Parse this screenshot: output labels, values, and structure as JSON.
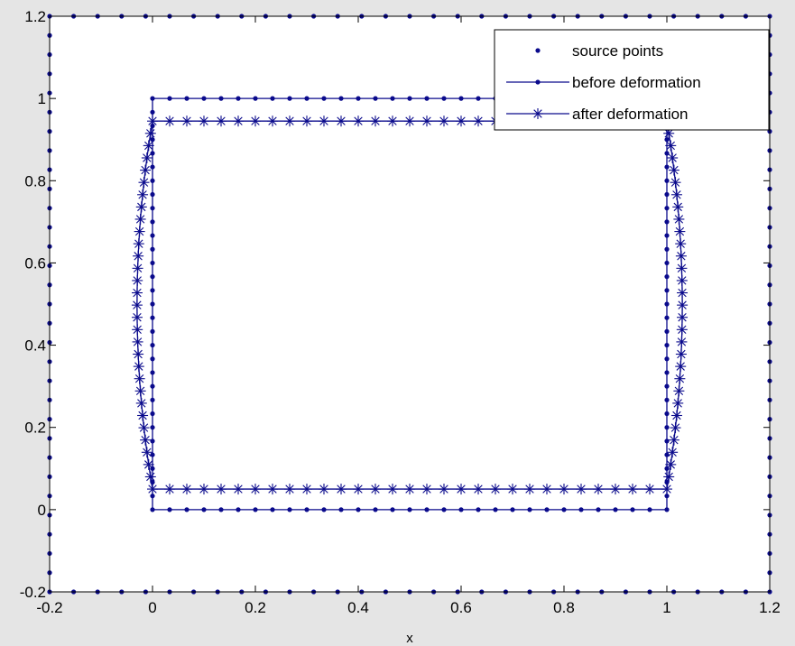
{
  "chart_data": {
    "type": "line",
    "title": "",
    "xlabel": "x",
    "ylabel": "",
    "xlim": [
      -0.2,
      1.2
    ],
    "ylim": [
      -0.2,
      1.2
    ],
    "xticks": [
      -0.2,
      0,
      0.2,
      0.4,
      0.6,
      0.8,
      1,
      1.2
    ],
    "yticks": [
      -0.2,
      0,
      0.2,
      0.4,
      0.6,
      0.8,
      1,
      1.2
    ],
    "xtick_labels": [
      "-0.2",
      "0",
      "0.2",
      "0.4",
      "0.6",
      "0.8",
      "1",
      "1.2"
    ],
    "ytick_labels": [
      "-0.2",
      "0",
      "0.2",
      "0.4",
      "0.6",
      "0.8",
      "1",
      "1.2"
    ],
    "grid": false,
    "legend_position": "top-right",
    "series": [
      {
        "name": "source points",
        "marker": "dot",
        "line": false,
        "shape": "square-boundary",
        "corners": [
          [
            -0.2,
            -0.2
          ],
          [
            1.2,
            -0.2
          ],
          [
            1.2,
            1.2
          ],
          [
            -0.2,
            1.2
          ]
        ],
        "points_per_side": 30
      },
      {
        "name": "before deformation",
        "marker": "dot",
        "line": true,
        "shape": "square-boundary",
        "corners": [
          [
            0,
            0
          ],
          [
            1,
            0
          ],
          [
            1,
            1
          ],
          [
            0,
            1
          ]
        ],
        "points_per_side": 30
      },
      {
        "name": "after deformation",
        "marker": "asterisk",
        "line": true,
        "shape": "barrel",
        "bottom_y": 0.05,
        "top_y": 0.945,
        "left_x_mid": -0.03,
        "right_x_mid": 1.03,
        "left_x_ends": 0,
        "right_x_ends": 1,
        "points_per_side": 30
      }
    ]
  },
  "colors": {
    "series": "#0a0a8c",
    "axes": "#000000",
    "plot_bg": "#ffffff",
    "figure_bg": "#e5e5e5"
  }
}
